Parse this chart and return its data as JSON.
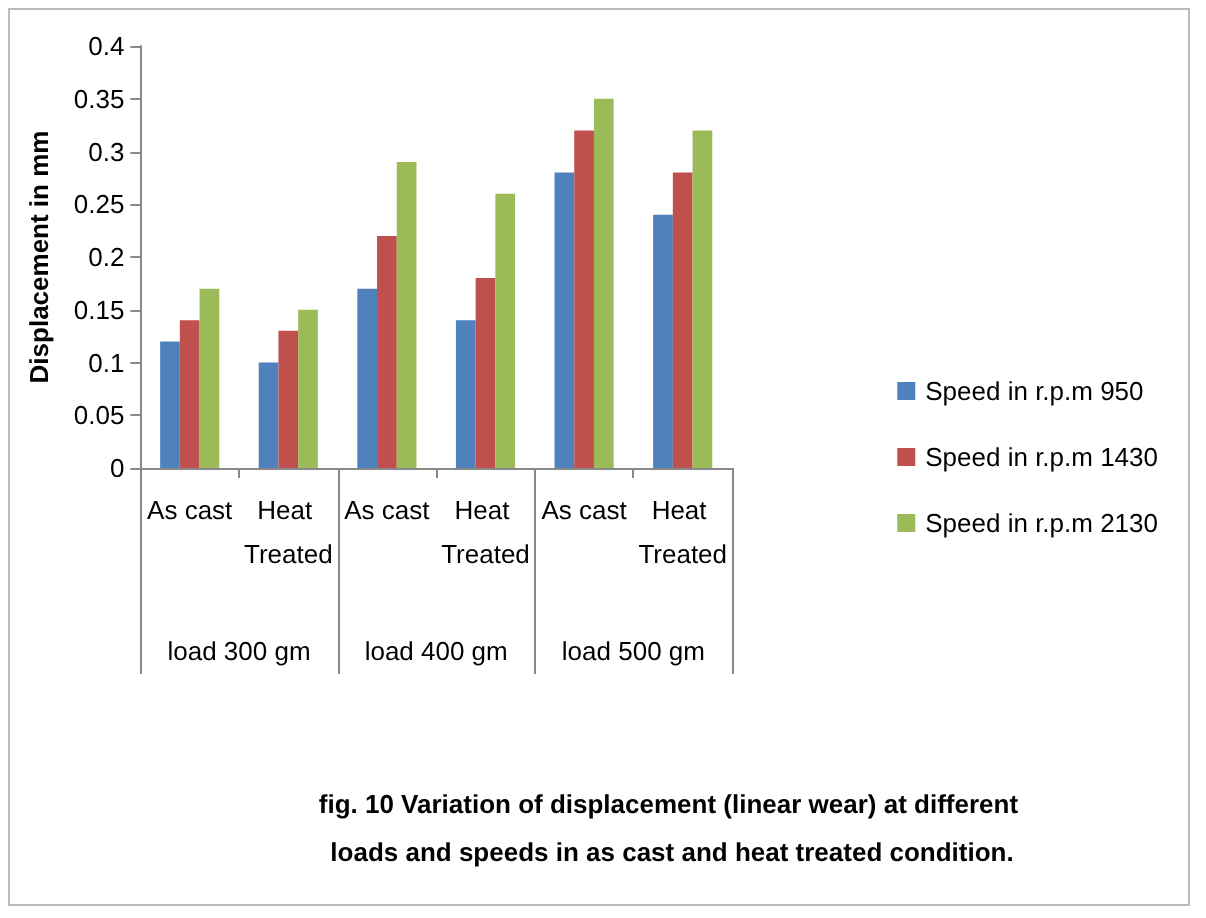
{
  "chart_data": {
    "type": "bar",
    "ylabel": "Displacement in mm",
    "categories": [
      "As cast",
      "Heat Treated",
      "As cast",
      "Heat Treated",
      "As cast",
      "Heat Treated"
    ],
    "series": [
      {
        "name": "Speed in r.p.m 950",
        "color": "#4f81bd",
        "values": [
          0.12,
          0.1,
          0.17,
          0.14,
          0.28,
          0.24
        ]
      },
      {
        "name": "Speed in r.p.m 1430",
        "color": "#c0504d",
        "values": [
          0.14,
          0.13,
          0.22,
          0.18,
          0.32,
          0.28
        ]
      },
      {
        "name": "Speed in r.p.m 2130",
        "color": "#9bbb59",
        "values": [
          0.17,
          0.15,
          0.29,
          0.26,
          0.35,
          0.32
        ]
      }
    ],
    "ylim": [
      0,
      0.4
    ],
    "yticks": [
      0,
      0.05,
      0.1,
      0.15,
      0.2,
      0.25,
      0.3,
      0.35,
      0.4
    ],
    "grid": false,
    "legend": "right",
    "annotations": [
      "load 300 gm",
      "load 400 gm",
      "load 500 gm",
      "fig. 10 Variation of displacement (linear wear) at different loads and speeds in as cast and heat treated condition."
    ]
  }
}
